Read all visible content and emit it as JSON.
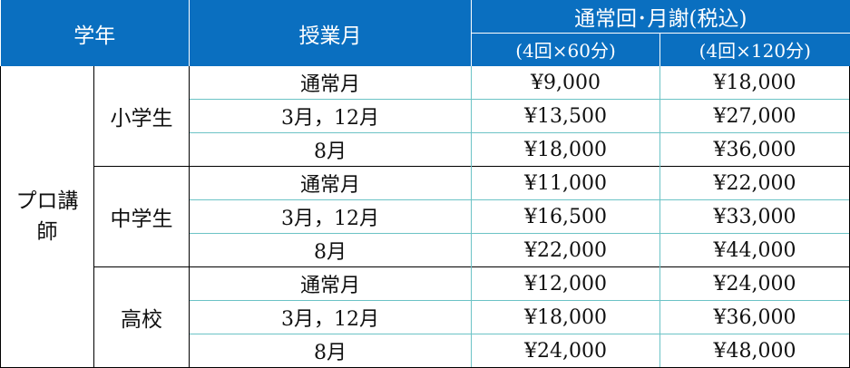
{
  "header": {
    "grade": "学年",
    "month": "授業月",
    "fee_title": "通常回･月謝(税込)",
    "plan_a": "(4回×60分)",
    "plan_b": "(4回×120分)"
  },
  "instructor_label": "プロ講\n師",
  "instructor_line1": "プロ講",
  "instructor_line2": "師",
  "groups": [
    {
      "level": "小学生",
      "rows": [
        {
          "month": "通常月",
          "a": "¥9,000",
          "b": "¥18,000"
        },
        {
          "month": "3月，12月",
          "a": "¥13,500",
          "b": "¥27,000"
        },
        {
          "month": "8月",
          "a": "¥18,000",
          "b": "¥36,000"
        }
      ]
    },
    {
      "level": "中学生",
      "rows": [
        {
          "month": "通常月",
          "a": "¥11,000",
          "b": "¥22,000"
        },
        {
          "month": "3月，12月",
          "a": "¥16,500",
          "b": "¥33,000"
        },
        {
          "month": "8月",
          "a": "¥22,000",
          "b": "¥44,000"
        }
      ]
    },
    {
      "level": "高校",
      "rows": [
        {
          "month": "通常月",
          "a": "¥12,000",
          "b": "¥24,000"
        },
        {
          "month": "3月，12月",
          "a": "¥18,000",
          "b": "¥36,000"
        },
        {
          "month": "8月",
          "a": "¥24,000",
          "b": "¥48,000"
        }
      ]
    }
  ],
  "colors": {
    "header_bg": "#0a6fc0",
    "header_text": "#ffffff",
    "inner_border": "#6cc3c6",
    "group_border": "#000000"
  }
}
